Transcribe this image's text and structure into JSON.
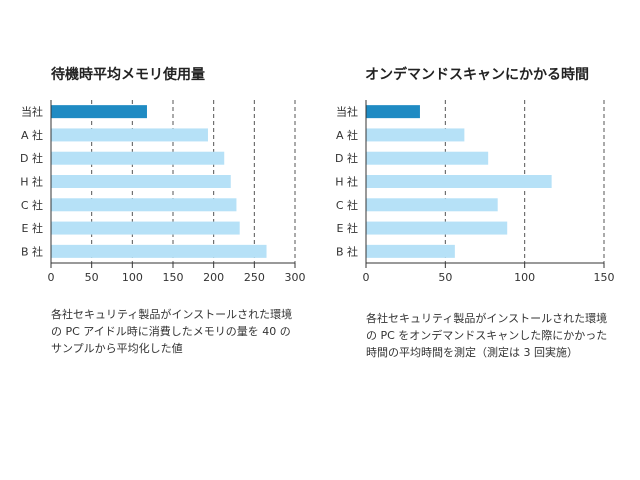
{
  "colors": {
    "highlight": "#1f8bc3",
    "bar": "#b6e1f7",
    "axis": "#333333",
    "grid": "#555555"
  },
  "chart_data": [
    {
      "type": "bar",
      "orientation": "horizontal",
      "title": "待機時平均メモリ使用量",
      "categories": [
        "当社",
        "A 社",
        "D 社",
        "H 社",
        "C 社",
        "E 社",
        "B 社"
      ],
      "values": [
        118,
        193,
        213,
        221,
        228,
        232,
        265
      ],
      "highlight_index": 0,
      "xlim": [
        0,
        300
      ],
      "xticks": [
        "0",
        "50",
        "100",
        "150",
        "200",
        "250",
        "300"
      ],
      "grid": true,
      "caption": "各社セキュリティ製品がインストールされた環境\nの PC アイドル時に消費したメモリの量を 40 の\nサンプルから平均化した値"
    },
    {
      "type": "bar",
      "orientation": "horizontal",
      "title": "オンデマンドスキャンにかかる時間",
      "categories": [
        "当社",
        "A 社",
        "D 社",
        "H 社",
        "C 社",
        "E 社",
        "B 社"
      ],
      "values": [
        34,
        62,
        77,
        117,
        83,
        89,
        56
      ],
      "highlight_index": 0,
      "xlim": [
        0,
        150
      ],
      "xticks": [
        "0",
        "50",
        "100",
        "150"
      ],
      "grid": true,
      "caption": "各社セキュリティ製品がインストールされた環境\nの PC をオンデマンドスキャンした際にかかった\n時間の平均時間を測定（測定は 3 回実施）"
    }
  ]
}
